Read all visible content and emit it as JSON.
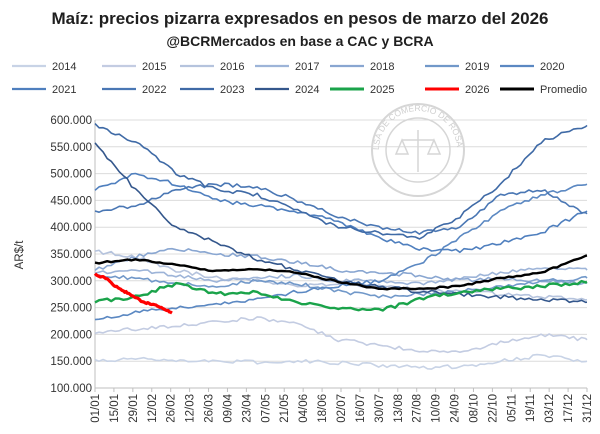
{
  "chart_data": {
    "type": "line",
    "title": "Maíz: precios pizarra  expresados en pesos de marzo del 2026",
    "subtitle": "@BCRMercados en base a CAC y BCRA",
    "xlabel": "",
    "ylabel": "AR$/t",
    "ylim": [
      100000,
      600000
    ],
    "y_ticks": [
      "100.000",
      "150.000",
      "200.000",
      "250.000",
      "300.000",
      "350.000",
      "400.000",
      "450.000",
      "500.000",
      "550.000",
      "600.000"
    ],
    "x_ticks": [
      "01/01",
      "15/01",
      "29/01",
      "12/02",
      "26/02",
      "12/03",
      "26/03",
      "09/04",
      "23/04",
      "07/05",
      "21/05",
      "04/06",
      "18/06",
      "02/07",
      "16/07",
      "30/07",
      "13/08",
      "27/08",
      "10/09",
      "24/09",
      "08/10",
      "22/10",
      "05/11",
      "19/11",
      "03/12",
      "17/12",
      "31/12"
    ],
    "x_range_days": [
      0,
      364
    ],
    "watermark_text": "BOLSA DE COMERCIO DE ROSARIO",
    "series": [
      {
        "name": "2014",
        "color": "#c8d3e6",
        "days": [
          0,
          30,
          60,
          90,
          120,
          150,
          180,
          210,
          240,
          270,
          300,
          330,
          364
        ],
        "values": [
          150000,
          155000,
          152000,
          150000,
          148000,
          150000,
          147000,
          142000,
          138000,
          140000,
          150000,
          160000,
          150000
        ]
      },
      {
        "name": "2015",
        "color": "#c3cce2",
        "days": [
          0,
          30,
          60,
          90,
          120,
          150,
          180,
          210,
          240,
          270,
          300,
          330,
          364
        ],
        "values": [
          205000,
          210000,
          215000,
          225000,
          230000,
          220000,
          190000,
          180000,
          170000,
          165000,
          185000,
          200000,
          190000
        ]
      },
      {
        "name": "2016",
        "color": "#b5c3dd",
        "days": [
          0,
          30,
          60,
          90,
          120,
          150,
          180,
          210,
          240,
          270,
          300,
          330,
          364
        ],
        "values": [
          355000,
          345000,
          320000,
          305000,
          300000,
          290000,
          295000,
          290000,
          285000,
          280000,
          275000,
          270000,
          265000
        ]
      },
      {
        "name": "2017",
        "color": "#9db4d8",
        "days": [
          0,
          30,
          60,
          90,
          120,
          150,
          180,
          210,
          240,
          270,
          300,
          330,
          364
        ],
        "values": [
          315000,
          320000,
          310000,
          300000,
          305000,
          310000,
          300000,
          300000,
          295000,
          305000,
          315000,
          325000,
          320000
        ]
      },
      {
        "name": "2018",
        "color": "#89a6d1",
        "days": [
          0,
          30,
          60,
          90,
          120,
          150,
          180,
          210,
          240,
          270,
          300,
          330,
          364
        ],
        "values": [
          320000,
          345000,
          360000,
          350000,
          345000,
          335000,
          320000,
          315000,
          310000,
          300000,
          305000,
          300000,
          295000
        ]
      },
      {
        "name": "2019",
        "color": "#7198c9",
        "days": [
          0,
          30,
          60,
          90,
          120,
          150,
          180,
          210,
          240,
          270,
          300,
          330,
          364
        ],
        "values": [
          310000,
          305000,
          295000,
          290000,
          300000,
          295000,
          280000,
          270000,
          275000,
          280000,
          290000,
          300000,
          305000
        ]
      },
      {
        "name": "2020",
        "color": "#5b88c2",
        "days": [
          0,
          30,
          60,
          90,
          120,
          150,
          180,
          210,
          240,
          270,
          300,
          330,
          364
        ],
        "values": [
          230000,
          240000,
          250000,
          255000,
          265000,
          280000,
          290000,
          300000,
          330000,
          380000,
          430000,
          460000,
          480000
        ]
      },
      {
        "name": "2021",
        "color": "#4f7fbe",
        "days": [
          0,
          30,
          60,
          90,
          120,
          150,
          180,
          210,
          240,
          270,
          300,
          330,
          364
        ],
        "values": [
          470000,
          500000,
          480000,
          450000,
          440000,
          430000,
          410000,
          380000,
          360000,
          355000,
          370000,
          390000,
          430000
        ]
      },
      {
        "name": "2022",
        "color": "#4a77b4",
        "days": [
          0,
          30,
          60,
          90,
          120,
          150,
          180,
          210,
          240,
          270,
          300,
          330,
          364
        ],
        "values": [
          430000,
          440000,
          470000,
          480000,
          475000,
          450000,
          420000,
          400000,
          390000,
          400000,
          460000,
          470000,
          425000
        ]
      },
      {
        "name": "2023",
        "color": "#3f6aa6",
        "days": [
          0,
          30,
          60,
          90,
          120,
          150,
          180,
          210,
          240,
          270,
          300,
          330,
          364
        ],
        "values": [
          590000,
          560000,
          500000,
          470000,
          460000,
          430000,
          400000,
          390000,
          380000,
          420000,
          480000,
          560000,
          590000
        ]
      },
      {
        "name": "2024",
        "color": "#34578c",
        "days": [
          0,
          30,
          60,
          90,
          120,
          150,
          180,
          210,
          240,
          270,
          300,
          330,
          364
        ],
        "values": [
          555000,
          470000,
          400000,
          370000,
          340000,
          320000,
          300000,
          290000,
          280000,
          275000,
          270000,
          265000,
          260000
        ]
      },
      {
        "name": "2025",
        "color": "#1aa34a",
        "days": [
          0,
          30,
          60,
          90,
          120,
          150,
          180,
          210,
          240,
          270,
          300,
          330,
          364
        ],
        "values": [
          262000,
          270000,
          295000,
          275000,
          280000,
          260000,
          250000,
          245000,
          265000,
          280000,
          285000,
          290000,
          298000
        ]
      },
      {
        "name": "2026",
        "color": "#ff0000",
        "days": [
          0,
          8,
          15,
          22,
          29,
          36,
          43,
          50,
          57
        ],
        "values": [
          312000,
          305000,
          290000,
          280000,
          270000,
          260000,
          255000,
          250000,
          240000
        ]
      },
      {
        "name": "Promedio",
        "color": "#000000",
        "days": [
          0,
          30,
          60,
          90,
          120,
          150,
          180,
          210,
          240,
          270,
          300,
          330,
          364
        ],
        "values": [
          333000,
          340000,
          330000,
          318000,
          322000,
          315000,
          298000,
          285000,
          285000,
          290000,
          305000,
          315000,
          347000
        ]
      }
    ]
  }
}
